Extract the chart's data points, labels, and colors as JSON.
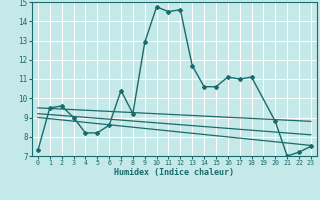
{
  "xlabel": "Humidex (Indice chaleur)",
  "bg_color": "#c5e8e8",
  "grid_color": "#ffffff",
  "line_color": "#1a6b6b",
  "xlim": [
    -0.5,
    23.5
  ],
  "ylim": [
    7,
    15
  ],
  "xtick_vals": [
    0,
    1,
    2,
    3,
    4,
    5,
    6,
    7,
    8,
    9,
    10,
    11,
    12,
    13,
    14,
    15,
    16,
    17,
    18,
    19,
    20,
    21,
    22,
    23
  ],
  "ytick_vals": [
    7,
    8,
    9,
    10,
    11,
    12,
    13,
    14,
    15
  ],
  "main_series": {
    "x": [
      0,
      1,
      2,
      3,
      4,
      5,
      6,
      7,
      8,
      9,
      10,
      11,
      12,
      13,
      14,
      15,
      16,
      17,
      18,
      20,
      21,
      22,
      23
    ],
    "y": [
      7.3,
      9.5,
      9.6,
      9.0,
      8.2,
      8.2,
      8.6,
      10.4,
      9.2,
      12.9,
      14.75,
      14.5,
      14.6,
      11.7,
      10.6,
      10.6,
      11.1,
      11.0,
      11.1,
      8.8,
      7.0,
      7.2,
      7.5
    ]
  },
  "reg_lines": [
    {
      "x": [
        0,
        23
      ],
      "y": [
        9.5,
        8.8
      ]
    },
    {
      "x": [
        0,
        23
      ],
      "y": [
        9.2,
        8.1
      ]
    },
    {
      "x": [
        0,
        23
      ],
      "y": [
        9.0,
        7.55
      ]
    }
  ]
}
